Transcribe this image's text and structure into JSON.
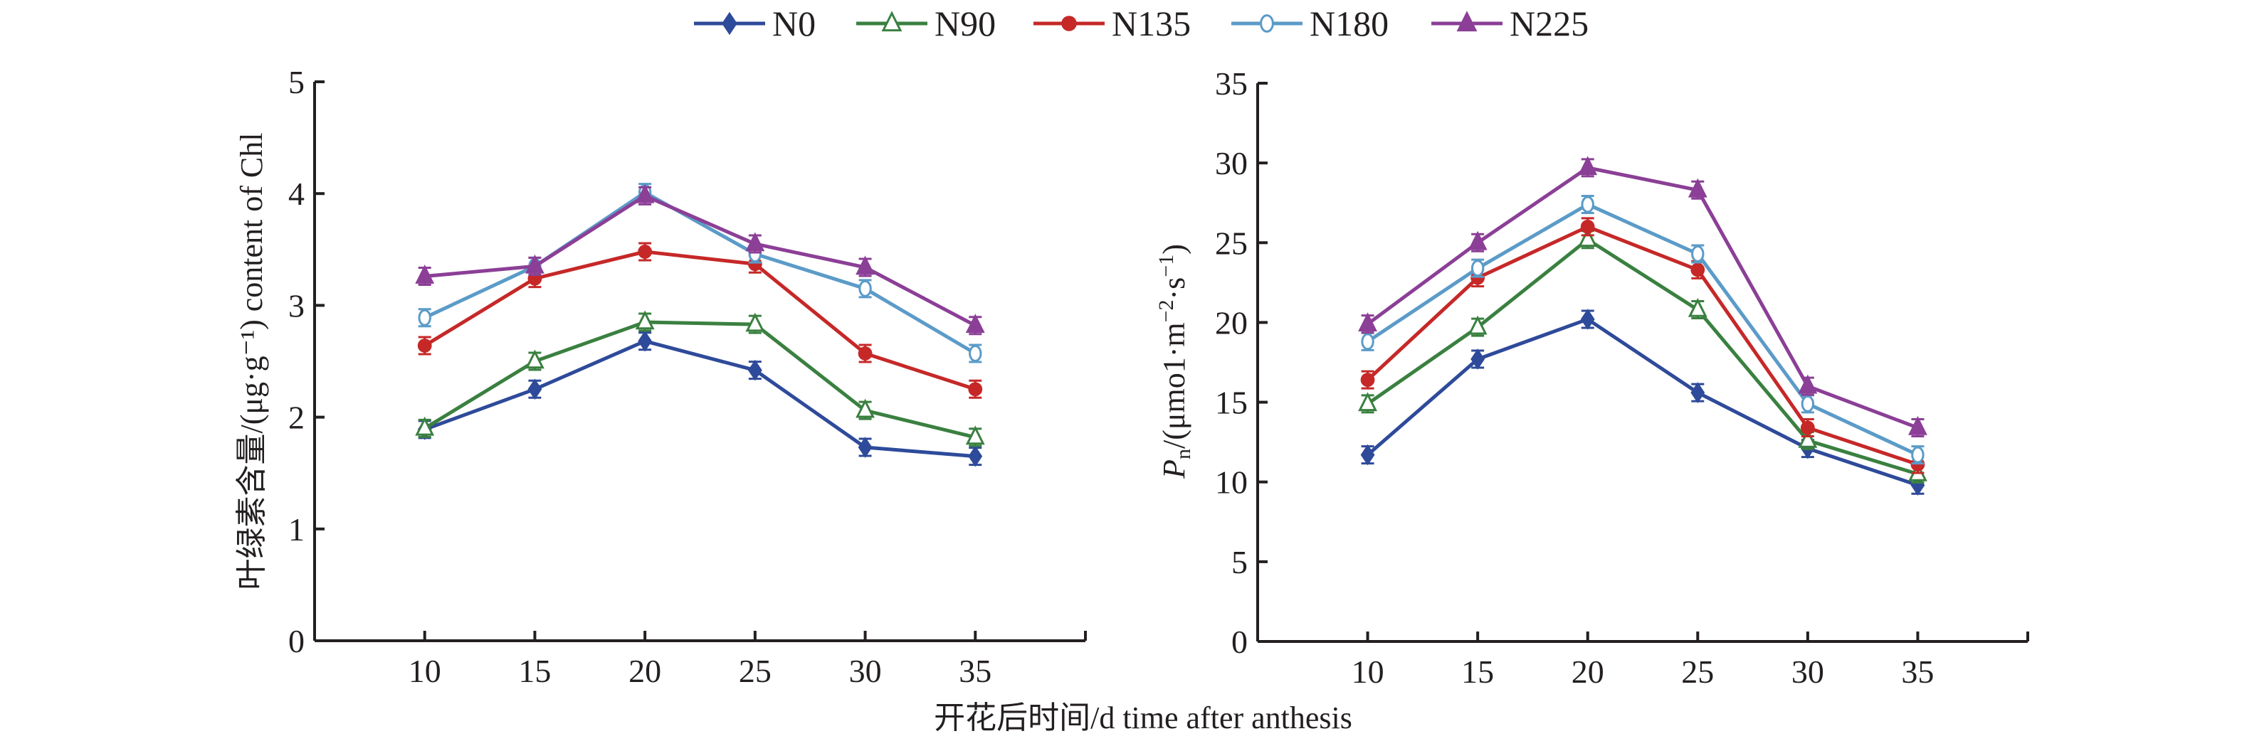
{
  "legend": [
    {
      "name": "N0",
      "color": "#2e4a9a",
      "marker": "diamond-filled"
    },
    {
      "name": "N90",
      "color": "#3a8040",
      "marker": "triangle-open"
    },
    {
      "name": "N135",
      "color": "#c62828",
      "marker": "circle-filled"
    },
    {
      "name": "N180",
      "color": "#5b9bc8",
      "marker": "circle-open"
    },
    {
      "name": "N225",
      "color": "#8b3f96",
      "marker": "triangle-filled"
    }
  ],
  "shared_xlabel": "开花后时间/d time after anthesis",
  "chart_data": [
    {
      "type": "line",
      "title": "",
      "xlabel": "开花后时间/d time after anthesis",
      "ylabel": "叶绿素含量/(μg·g⁻¹) content of Chl",
      "x": [
        10,
        15,
        20,
        25,
        30,
        35
      ],
      "xticks": [
        "10",
        "15",
        "20",
        "25",
        "30",
        "35"
      ],
      "xlim": [
        5,
        40
      ],
      "yticks": [
        "0",
        "1",
        "2",
        "3",
        "4",
        "5"
      ],
      "ylim": [
        0,
        5
      ],
      "grid": false,
      "legend_position": "top-center",
      "series": [
        {
          "name": "N0",
          "values": [
            1.89,
            2.25,
            2.68,
            2.42,
            1.73,
            1.65
          ]
        },
        {
          "name": "N90",
          "values": [
            1.9,
            2.5,
            2.85,
            2.83,
            2.06,
            1.82
          ]
        },
        {
          "name": "N135",
          "values": [
            2.64,
            3.24,
            3.48,
            3.37,
            2.57,
            2.25
          ]
        },
        {
          "name": "N180",
          "values": [
            2.89,
            3.35,
            4.01,
            3.46,
            3.15,
            2.57
          ]
        },
        {
          "name": "N225",
          "values": [
            3.26,
            3.35,
            3.98,
            3.55,
            3.34,
            2.82
          ]
        }
      ]
    },
    {
      "type": "line",
      "title": "",
      "xlabel": "开花后时间/d time after anthesis",
      "ylabel": "Pn/(μmo1·m⁻²·s⁻¹)",
      "ylabel_main": "P",
      "ylabel_sub": "n",
      "ylabel_rest": "/(μmo1·m",
      "ylabel_sup1": "−2",
      "ylabel_mid": "·s",
      "ylabel_sup2": "−1",
      "ylabel_end": ")",
      "x": [
        10,
        15,
        20,
        25,
        30,
        35
      ],
      "xticks": [
        "10",
        "15",
        "20",
        "25",
        "30",
        "35"
      ],
      "xlim": [
        5,
        40
      ],
      "yticks": [
        "0",
        "5",
        "10",
        "15",
        "20",
        "25",
        "30",
        "35"
      ],
      "ylim": [
        0,
        35
      ],
      "grid": false,
      "legend_position": "top-center",
      "series": [
        {
          "name": "N0",
          "values": [
            11.7,
            17.7,
            20.2,
            15.6,
            12.1,
            9.8
          ]
        },
        {
          "name": "N90",
          "values": [
            14.9,
            19.7,
            25.2,
            20.8,
            12.6,
            10.5
          ]
        },
        {
          "name": "N135",
          "values": [
            16.4,
            22.8,
            26.0,
            23.3,
            13.4,
            11.1
          ]
        },
        {
          "name": "N180",
          "values": [
            18.8,
            23.4,
            27.4,
            24.3,
            14.9,
            11.7
          ]
        },
        {
          "name": "N225",
          "values": [
            19.9,
            25.0,
            29.7,
            28.3,
            16.0,
            13.4
          ]
        }
      ]
    }
  ]
}
